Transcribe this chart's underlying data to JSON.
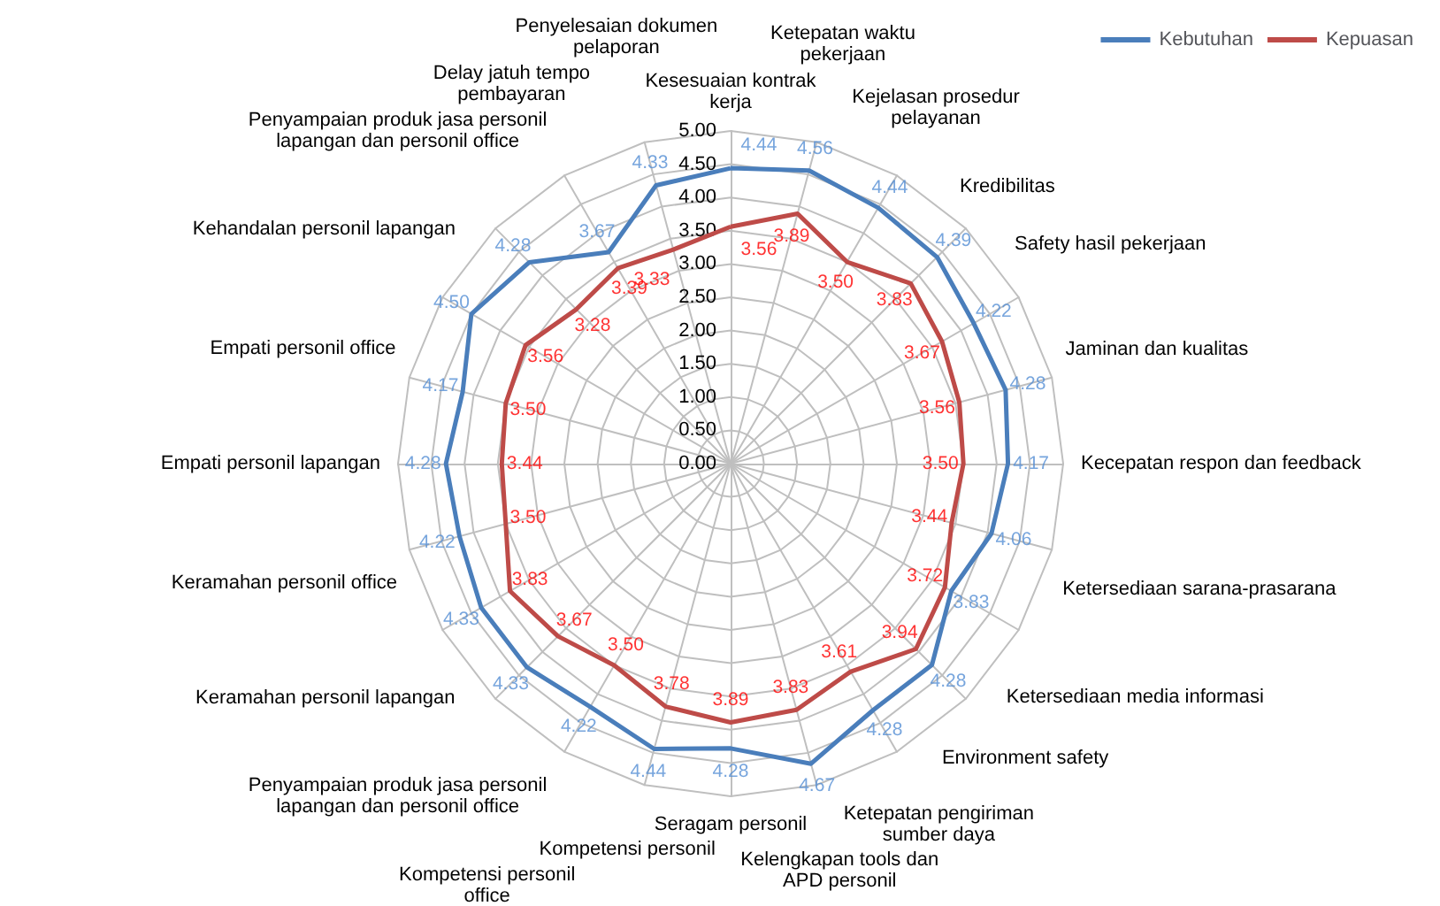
{
  "chart_data": {
    "type": "radar",
    "categories": [
      "Kesesuaian kontrak kerja",
      "Ketepatan waktu pekerjaan",
      "Kejelasan prosedur pelayanan",
      "Kredibilitas",
      "Safety hasil pekerjaan",
      "Jaminan dan kualitas",
      "Kecepatan respon dan feedback",
      "Ketersediaan sarana-prasarana",
      "Ketersediaan media informasi",
      "Environment safety",
      "Ketepatan pengiriman sumber daya",
      "Kelengkapan tools dan APD personil",
      "Seragam personil",
      "Kompetensi personil",
      "Kompetensi personil office",
      "Penyampaian produk jasa personil lapangan dan personil office",
      "Keramahan personil lapangan",
      "Keramahan personil office",
      "Empati personil lapangan",
      "Empati personil office",
      "Kehandalan personil lapangan",
      "Penyampaian produk jasa personil lapangan dan personil office",
      "Delay jatuh tempo pembayaran",
      "Penyelesaian dokumen pelaporan"
    ],
    "series": [
      {
        "name": "Kebutuhan",
        "color": "#4a7ebb",
        "values": [
          4.44,
          4.56,
          4.44,
          4.39,
          4.22,
          4.28,
          4.17,
          4.06,
          3.83,
          4.28,
          4.28,
          4.67,
          4.28,
          4.44,
          4.22,
          4.33,
          4.33,
          4.22,
          4.28,
          4.17,
          4.5,
          4.28,
          3.67,
          4.33
        ],
        "value_labels": [
          "4.44",
          "4.56",
          "4.44",
          "4.39",
          "4.22",
          "4.28",
          "4.17",
          "4.06",
          "3.83",
          "4.28",
          "4.28",
          "4.67",
          "4.28",
          "4.44",
          "4.22",
          "4.33",
          "4.33",
          "4.22",
          "4.28",
          "4.17",
          "4.50",
          "4.28",
          "3.67",
          "4.33"
        ]
      },
      {
        "name": "Kepuasan",
        "color": "#be4b48",
        "values": [
          3.56,
          3.89,
          3.5,
          3.83,
          3.67,
          3.56,
          3.5,
          3.44,
          3.72,
          3.94,
          3.61,
          3.83,
          3.89,
          3.78,
          3.5,
          3.67,
          3.83,
          3.5,
          3.44,
          3.5,
          3.56,
          3.28,
          3.39,
          3.33
        ],
        "value_labels": [
          "3.56",
          "3.89",
          "3.50",
          "3.83",
          "3.67",
          "3.56",
          "3.50",
          "3.44",
          "3.72",
          "3.94",
          "3.61",
          "3.83",
          "3.89",
          "3.78",
          "3.50",
          "3.67",
          "3.83",
          "3.50",
          "3.44",
          "3.50",
          "3.56",
          "3.28",
          "3.39",
          "3.33"
        ]
      }
    ],
    "ylim": [
      0,
      5
    ],
    "yticks": [
      {
        "value": 0,
        "label": "0.00"
      },
      {
        "value": 0.5,
        "label": "0.50"
      },
      {
        "value": 1,
        "label": "1.00"
      },
      {
        "value": 1.5,
        "label": "1.50"
      },
      {
        "value": 2,
        "label": "2.00"
      },
      {
        "value": 2.5,
        "label": "2.50"
      },
      {
        "value": 3,
        "label": "3.00"
      },
      {
        "value": 3.5,
        "label": "3.50"
      },
      {
        "value": 4,
        "label": "4.00"
      },
      {
        "value": 4.5,
        "label": "4.50"
      },
      {
        "value": 5,
        "label": "5.00"
      }
    ],
    "grid": true,
    "legend": "top right",
    "marker": "none",
    "line_style": "solid"
  }
}
